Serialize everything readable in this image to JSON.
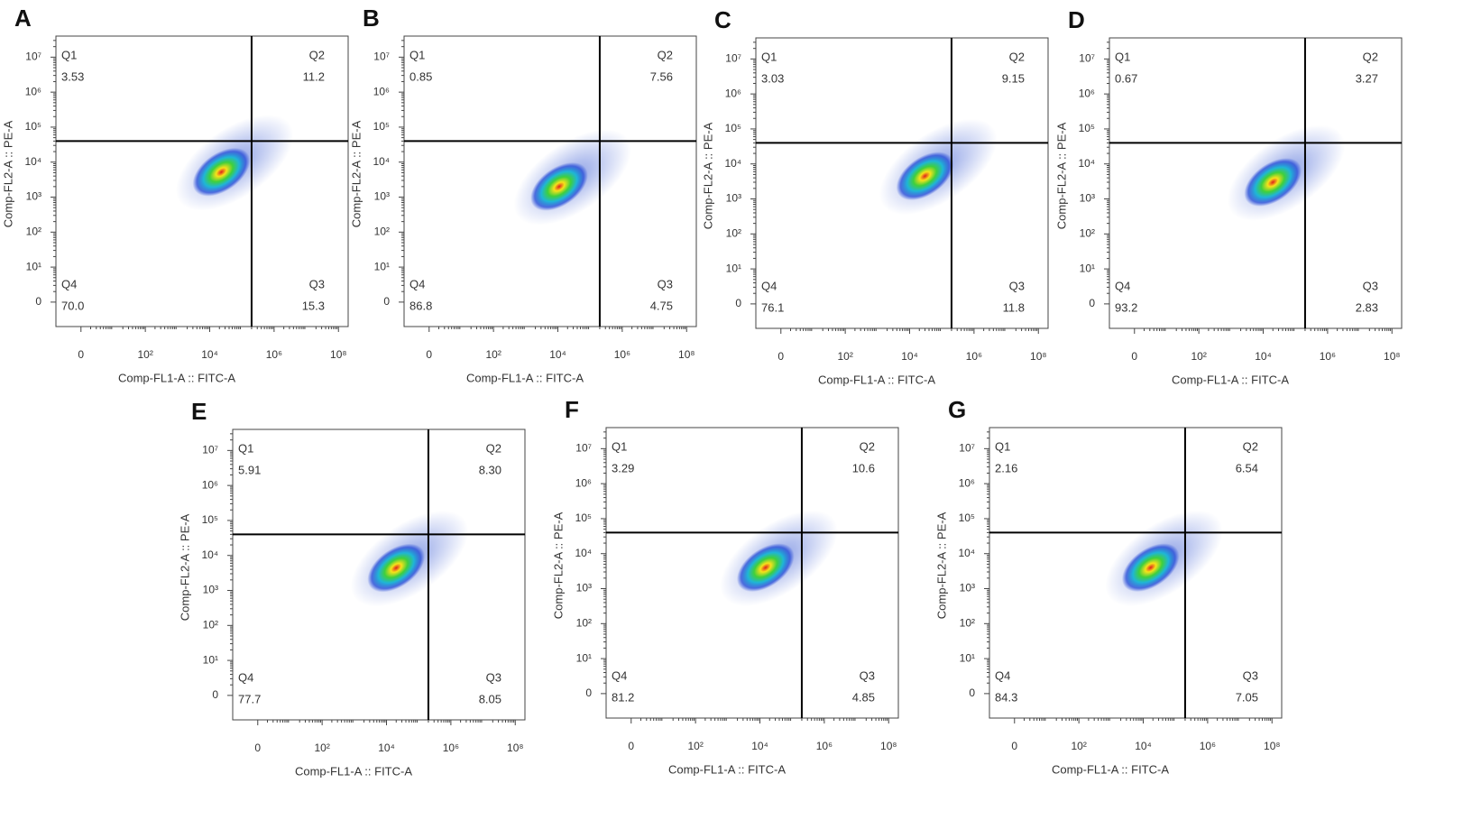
{
  "chart_data": [
    {
      "type": "scatter",
      "panel": "A",
      "xlabel": "Comp-FL1-A :: FITC-A",
      "ylabel": "Comp-FL2-A :: PE-A",
      "xlim": [
        -5,
        200000000
      ],
      "ylim": [
        -4,
        40000000
      ],
      "xticks": [
        0,
        {
          "value": 100,
          "label": "10²"
        },
        {
          "value": 10000,
          "label": "10⁴"
        },
        {
          "value": 1000000,
          "label": "10⁶"
        },
        {
          "value": 100000000,
          "label": "10⁸"
        }
      ],
      "yticks": [
        0,
        {
          "value": 10,
          "label": "10¹"
        },
        {
          "value": 100,
          "label": "10²"
        },
        {
          "value": 1000,
          "label": "10³"
        },
        {
          "value": 10000,
          "label": "10⁴"
        },
        {
          "value": 100000,
          "label": "10⁵"
        },
        {
          "value": 1000000,
          "label": "10⁶"
        },
        {
          "value": 10000000,
          "label": "10⁷"
        }
      ],
      "quadrants": {
        "names": [
          "Q1",
          "Q2",
          "Q3",
          "Q4"
        ],
        "values": [
          3.53,
          11.2,
          15.3,
          70.0
        ],
        "value_labels": [
          "3.53",
          "11.2",
          "15.3",
          "70.0"
        ]
      },
      "gate": {
        "x": 200000,
        "y": 40000
      },
      "density_center": {
        "x": 23000,
        "y": 5200
      }
    },
    {
      "type": "scatter",
      "panel": "B",
      "xlabel": "Comp-FL1-A :: FITC-A",
      "ylabel": "Comp-FL2-A :: PE-A",
      "xlim": [
        -5,
        200000000
      ],
      "ylim": [
        -4,
        40000000
      ],
      "xticks": [
        0,
        {
          "value": 100,
          "label": "10²"
        },
        {
          "value": 10000,
          "label": "10⁴"
        },
        {
          "value": 1000000,
          "label": "10⁶"
        },
        {
          "value": 100000000,
          "label": "10⁸"
        }
      ],
      "yticks": [
        0,
        {
          "value": 10,
          "label": "10¹"
        },
        {
          "value": 100,
          "label": "10²"
        },
        {
          "value": 1000,
          "label": "10³"
        },
        {
          "value": 10000,
          "label": "10⁴"
        },
        {
          "value": 100000,
          "label": "10⁵"
        },
        {
          "value": 1000000,
          "label": "10⁶"
        },
        {
          "value": 10000000,
          "label": "10⁷"
        }
      ],
      "quadrants": {
        "names": [
          "Q1",
          "Q2",
          "Q3",
          "Q4"
        ],
        "values": [
          0.85,
          7.56,
          4.75,
          86.8
        ],
        "value_labels": [
          "0.85",
          "7.56",
          "4.75",
          "86.8"
        ]
      },
      "gate": {
        "x": 200000,
        "y": 40000
      },
      "density_center": {
        "x": 11000,
        "y": 2000
      }
    },
    {
      "type": "scatter",
      "panel": "C",
      "xlabel": "Comp-FL1-A :: FITC-A",
      "ylabel": "Comp-FL2-A :: PE-A",
      "xlim": [
        -5,
        200000000
      ],
      "ylim": [
        -4,
        40000000
      ],
      "xticks": [
        0,
        {
          "value": 100,
          "label": "10²"
        },
        {
          "value": 10000,
          "label": "10⁴"
        },
        {
          "value": 1000000,
          "label": "10⁶"
        },
        {
          "value": 100000000,
          "label": "10⁸"
        }
      ],
      "yticks": [
        0,
        {
          "value": 10,
          "label": "10¹"
        },
        {
          "value": 100,
          "label": "10²"
        },
        {
          "value": 1000,
          "label": "10³"
        },
        {
          "value": 10000,
          "label": "10⁴"
        },
        {
          "value": 100000,
          "label": "10⁵"
        },
        {
          "value": 1000000,
          "label": "10⁶"
        },
        {
          "value": 10000000,
          "label": "10⁷"
        }
      ],
      "quadrants": {
        "names": [
          "Q1",
          "Q2",
          "Q3",
          "Q4"
        ],
        "values": [
          3.03,
          9.15,
          11.8,
          76.1
        ],
        "value_labels": [
          "3.03",
          "9.15",
          "11.8",
          "76.1"
        ]
      },
      "gate": {
        "x": 200000,
        "y": 40000
      },
      "density_center": {
        "x": 30000,
        "y": 4500
      }
    },
    {
      "type": "scatter",
      "panel": "D",
      "xlabel": "Comp-FL1-A :: FITC-A",
      "ylabel": "Comp-FL2-A :: PE-A",
      "xlim": [
        -5,
        200000000
      ],
      "ylim": [
        -4,
        40000000
      ],
      "xticks": [
        0,
        {
          "value": 100,
          "label": "10²"
        },
        {
          "value": 10000,
          "label": "10⁴"
        },
        {
          "value": 1000000,
          "label": "10⁶"
        },
        {
          "value": 100000000,
          "label": "10⁸"
        }
      ],
      "yticks": [
        0,
        {
          "value": 10,
          "label": "10¹"
        },
        {
          "value": 100,
          "label": "10²"
        },
        {
          "value": 1000,
          "label": "10³"
        },
        {
          "value": 10000,
          "label": "10⁴"
        },
        {
          "value": 100000,
          "label": "10⁵"
        },
        {
          "value": 1000000,
          "label": "10⁶"
        },
        {
          "value": 10000000,
          "label": "10⁷"
        }
      ],
      "quadrants": {
        "names": [
          "Q1",
          "Q2",
          "Q3",
          "Q4"
        ],
        "values": [
          0.67,
          3.27,
          2.83,
          93.2
        ],
        "value_labels": [
          "0.67",
          "3.27",
          "2.83",
          "93.2"
        ]
      },
      "gate": {
        "x": 200000,
        "y": 40000
      },
      "density_center": {
        "x": 20000,
        "y": 3000
      }
    },
    {
      "type": "scatter",
      "panel": "E",
      "xlabel": "Comp-FL1-A :: FITC-A",
      "ylabel": "Comp-FL2-A :: PE-A",
      "xlim": [
        -5,
        200000000
      ],
      "ylim": [
        -4,
        40000000
      ],
      "xticks": [
        0,
        {
          "value": 100,
          "label": "10²"
        },
        {
          "value": 10000,
          "label": "10⁴"
        },
        {
          "value": 1000000,
          "label": "10⁶"
        },
        {
          "value": 100000000,
          "label": "10⁸"
        }
      ],
      "yticks": [
        0,
        {
          "value": 10,
          "label": "10¹"
        },
        {
          "value": 100,
          "label": "10²"
        },
        {
          "value": 1000,
          "label": "10³"
        },
        {
          "value": 10000,
          "label": "10⁴"
        },
        {
          "value": 100000,
          "label": "10⁵"
        },
        {
          "value": 1000000,
          "label": "10⁶"
        },
        {
          "value": 10000000,
          "label": "10⁷"
        }
      ],
      "quadrants": {
        "names": [
          "Q1",
          "Q2",
          "Q3",
          "Q4"
        ],
        "values": [
          5.91,
          8.3,
          8.05,
          77.7
        ],
        "value_labels": [
          "5.91",
          "8.30",
          "8.05",
          "77.7"
        ]
      },
      "gate": {
        "x": 200000,
        "y": 40000
      },
      "density_center": {
        "x": 20000,
        "y": 4400
      }
    },
    {
      "type": "scatter",
      "panel": "F",
      "xlabel": "Comp-FL1-A :: FITC-A",
      "ylabel": "Comp-FL2-A :: PE-A",
      "xlim": [
        -5,
        200000000
      ],
      "ylim": [
        -4,
        40000000
      ],
      "xticks": [
        0,
        {
          "value": 100,
          "label": "10²"
        },
        {
          "value": 10000,
          "label": "10⁴"
        },
        {
          "value": 1000000,
          "label": "10⁶"
        },
        {
          "value": 100000000,
          "label": "10⁸"
        }
      ],
      "yticks": [
        0,
        {
          "value": 10,
          "label": "10¹"
        },
        {
          "value": 100,
          "label": "10²"
        },
        {
          "value": 1000,
          "label": "10³"
        },
        {
          "value": 10000,
          "label": "10⁴"
        },
        {
          "value": 100000,
          "label": "10⁵"
        },
        {
          "value": 1000000,
          "label": "10⁶"
        },
        {
          "value": 10000000,
          "label": "10⁷"
        }
      ],
      "quadrants": {
        "names": [
          "Q1",
          "Q2",
          "Q3",
          "Q4"
        ],
        "values": [
          3.29,
          10.6,
          4.85,
          81.2
        ],
        "value_labels": [
          "3.29",
          "10.6",
          "4.85",
          "81.2"
        ]
      },
      "gate": {
        "x": 200000,
        "y": 40000
      },
      "density_center": {
        "x": 15000,
        "y": 4000
      }
    },
    {
      "type": "scatter",
      "panel": "G",
      "xlabel": "Comp-FL1-A :: FITC-A",
      "ylabel": "Comp-FL2-A :: PE-A",
      "xlim": [
        -5,
        200000000
      ],
      "ylim": [
        -4,
        40000000
      ],
      "xticks": [
        0,
        {
          "value": 100,
          "label": "10²"
        },
        {
          "value": 10000,
          "label": "10⁴"
        },
        {
          "value": 1000000,
          "label": "10⁶"
        },
        {
          "value": 100000000,
          "label": "10⁸"
        }
      ],
      "yticks": [
        0,
        {
          "value": 10,
          "label": "10¹"
        },
        {
          "value": 100,
          "label": "10²"
        },
        {
          "value": 1000,
          "label": "10³"
        },
        {
          "value": 10000,
          "label": "10⁴"
        },
        {
          "value": 100000,
          "label": "10⁵"
        },
        {
          "value": 1000000,
          "label": "10⁶"
        },
        {
          "value": 10000000,
          "label": "10⁷"
        }
      ],
      "quadrants": {
        "names": [
          "Q1",
          "Q2",
          "Q3",
          "Q4"
        ],
        "values": [
          2.16,
          6.54,
          7.05,
          84.3
        ],
        "value_labels": [
          "2.16",
          "6.54",
          "7.05",
          "84.3"
        ]
      },
      "gate": {
        "x": 200000,
        "y": 40000
      },
      "density_center": {
        "x": 17000,
        "y": 4000
      }
    }
  ]
}
